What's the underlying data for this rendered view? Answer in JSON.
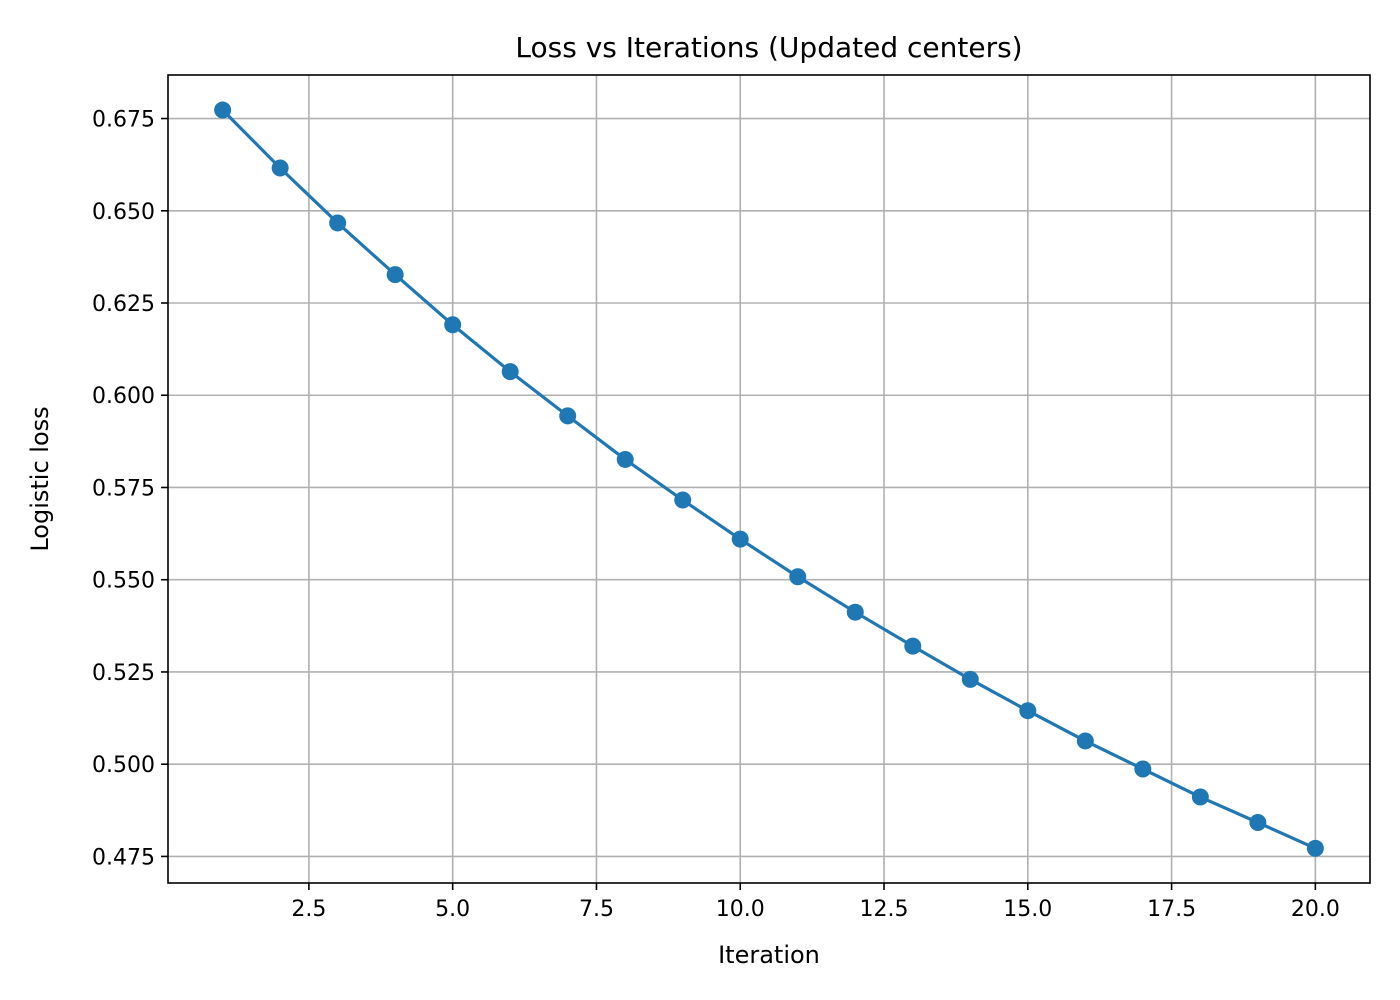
{
  "chart_data": {
    "type": "line",
    "title": "Loss vs Iterations (Updated centers)",
    "xlabel": "Iteration",
    "ylabel": "Logistic loss",
    "xlim": [
      0.05,
      20.95
    ],
    "ylim": [
      0.4678,
      0.6868
    ],
    "grid": true,
    "legend": "none",
    "x_ticks": [
      2.5,
      5.0,
      7.5,
      10.0,
      12.5,
      15.0,
      17.5,
      20.0
    ],
    "x_tick_labels": [
      "2.5",
      "5.0",
      "7.5",
      "10.0",
      "12.5",
      "15.0",
      "17.5",
      "20.0"
    ],
    "y_ticks": [
      0.475,
      0.5,
      0.525,
      0.55,
      0.575,
      0.6,
      0.625,
      0.65,
      0.675
    ],
    "y_tick_labels": [
      "0.475",
      "0.500",
      "0.525",
      "0.550",
      "0.575",
      "0.600",
      "0.625",
      "0.650",
      "0.675"
    ],
    "series": [
      {
        "color": "#1f77b4",
        "marker": "circle",
        "x": [
          1,
          2,
          3,
          4,
          5,
          6,
          7,
          8,
          9,
          10,
          11,
          12,
          13,
          14,
          15,
          16,
          17,
          18,
          19,
          20
        ],
        "y": [
          0.6773,
          0.6616,
          0.6467,
          0.6327,
          0.6191,
          0.6064,
          0.5944,
          0.5826,
          0.5716,
          0.561,
          0.5508,
          0.5412,
          0.532,
          0.523,
          0.5145,
          0.5063,
          0.4987,
          0.4911,
          0.4842,
          0.4772
        ]
      }
    ]
  }
}
